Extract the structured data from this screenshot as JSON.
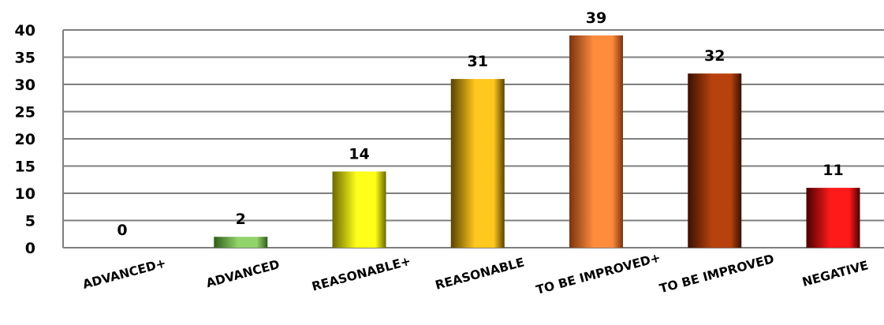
{
  "chart_data": {
    "type": "bar",
    "title": "",
    "xlabel": "",
    "ylabel": "",
    "categories": [
      "ADVANCED+",
      "ADVANCED",
      "REASONABLE+",
      "REASONABLE",
      "TO BE IMPROVED+",
      "TO BE IMPROVED",
      "NEGATIVE"
    ],
    "values": [
      0,
      2,
      14,
      31,
      39,
      32,
      11
    ],
    "ylim": [
      0,
      40
    ],
    "yticks": [
      0,
      5,
      10,
      15,
      20,
      25,
      30,
      35,
      40
    ],
    "grid": true,
    "legend": "none",
    "bar_colors": [
      {
        "dark": "#1f3b12",
        "light": "#8fce5a"
      },
      {
        "dark": "#2f5e1a",
        "light": "#92d36a"
      },
      {
        "dark": "#6b6a00",
        "light": "#ffff1a"
      },
      {
        "dark": "#5a4200",
        "light": "#ffc81e"
      },
      {
        "dark": "#7a3410",
        "light": "#ff8c3c"
      },
      {
        "dark": "#3a1000",
        "light": "#b8420d"
      },
      {
        "dark": "#4a0000",
        "light": "#ff1a1a"
      }
    ],
    "gridline_color": "#7f7f7f"
  }
}
